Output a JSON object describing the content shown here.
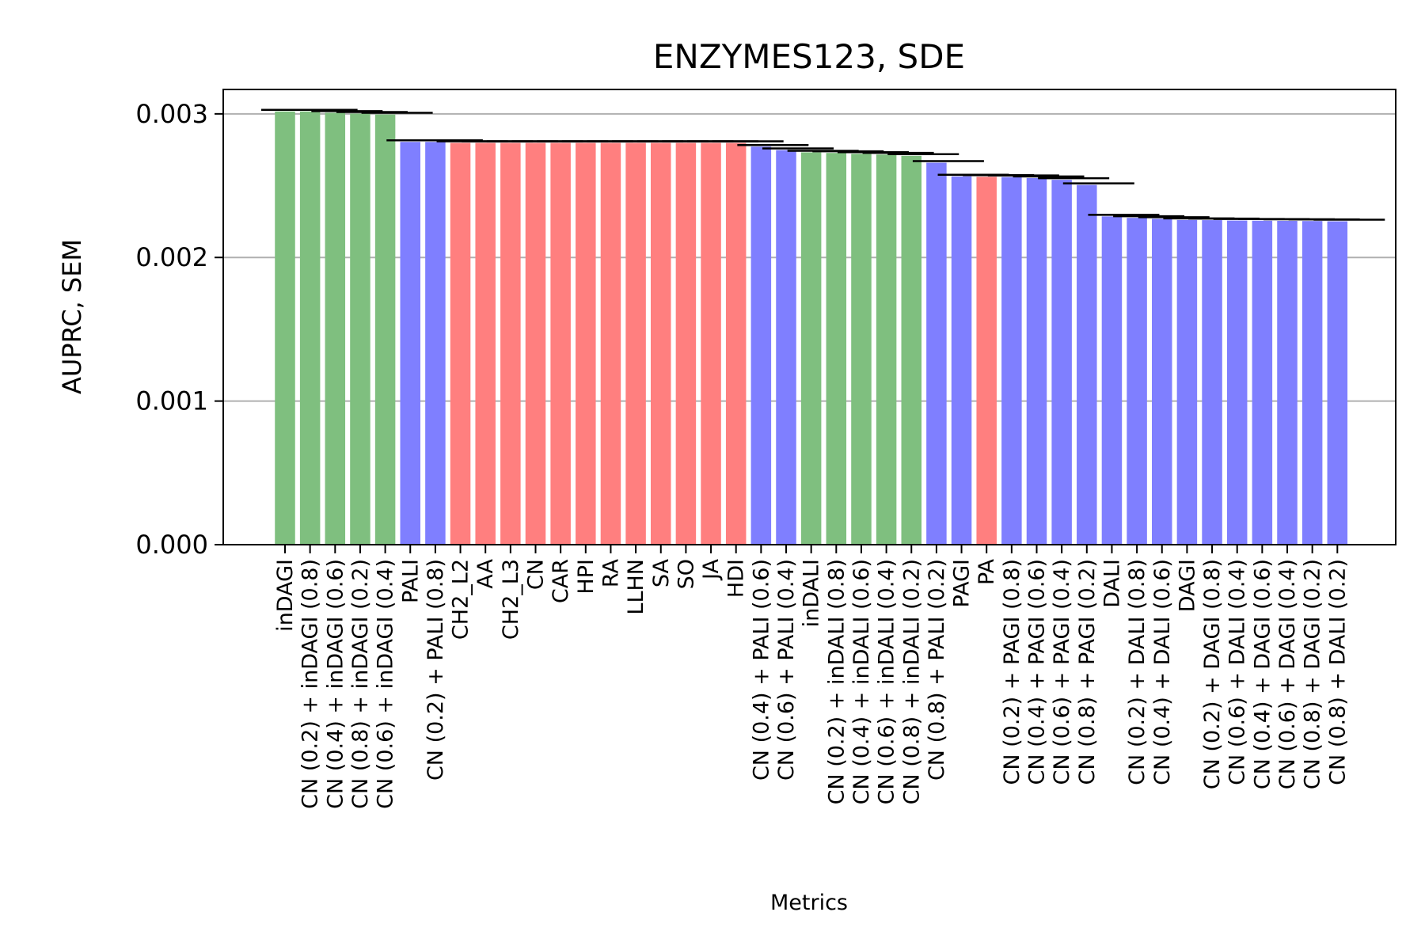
{
  "chart_data": {
    "type": "bar",
    "title": "ENZYMES123, SDE",
    "xlabel": "Metrics",
    "ylabel": "AUPRC, SEM",
    "ylim": [
      0,
      0.00317
    ],
    "yticks": [
      0.0,
      0.001,
      0.002,
      0.003
    ],
    "ytick_labels": [
      "0.000",
      "0.001",
      "0.002",
      "0.003"
    ],
    "grid": "y",
    "colors": {
      "green": "#7fbf7f",
      "blue": "#7f7fff",
      "red": "#ff7f7f",
      "grid": "#b0b0b0",
      "errorbar": "#000000"
    },
    "categories": [
      "inDAGI",
      "CN (0.2) + inDAGI (0.8)",
      "CN (0.4) + inDAGI (0.6)",
      "CN (0.8) + inDAGI (0.2)",
      "CN (0.6) + inDAGI (0.4)",
      "PALI",
      "CN (0.2) + PALI (0.8)",
      "CH2_L2",
      "AA",
      "CH2_L3",
      "CN",
      "CAR",
      "HPI",
      "RA",
      "LLHN",
      "SA",
      "SO",
      "JA",
      "HDI",
      "CN (0.4) + PALI (0.6)",
      "CN (0.6) + PALI (0.4)",
      "inDALI",
      "CN (0.2) + inDALI (0.8)",
      "CN (0.4) + inDALI (0.6)",
      "CN (0.6) + inDALI (0.4)",
      "CN (0.8) + inDALI (0.2)",
      "CN (0.8) + PALI (0.2)",
      "PAGI",
      "PA",
      "CN (0.2) + PAGI (0.8)",
      "CN (0.4) + PAGI (0.6)",
      "CN (0.6) + PAGI (0.4)",
      "CN (0.8) + PAGI (0.2)",
      "DALI",
      "CN (0.2) + DALI (0.8)",
      "CN (0.4) + DALI (0.6)",
      "DAGI",
      "CN (0.2) + DAGI (0.8)",
      "CN (0.6) + DALI (0.4)",
      "CN (0.4) + DAGI (0.6)",
      "CN (0.6) + DAGI (0.4)",
      "CN (0.8) + DAGI (0.2)",
      "CN (0.8) + DALI (0.2)"
    ],
    "values": [
      0.003017,
      0.003017,
      0.003008,
      0.003002,
      0.002996,
      0.002805,
      0.002805,
      0.002798,
      0.002798,
      0.002798,
      0.002798,
      0.002798,
      0.002798,
      0.002798,
      0.002798,
      0.002798,
      0.002798,
      0.002798,
      0.002798,
      0.002772,
      0.002748,
      0.002732,
      0.002728,
      0.002722,
      0.002717,
      0.002708,
      0.00266,
      0.002565,
      0.002562,
      0.00256,
      0.002553,
      0.002541,
      0.002505,
      0.002286,
      0.002276,
      0.002269,
      0.002261,
      0.00226,
      0.002257,
      0.002256,
      0.002255,
      0.002254,
      0.002252
    ],
    "bar_colors": [
      "green",
      "green",
      "green",
      "green",
      "green",
      "blue",
      "blue",
      "red",
      "red",
      "red",
      "red",
      "red",
      "red",
      "red",
      "red",
      "red",
      "red",
      "red",
      "red",
      "blue",
      "blue",
      "green",
      "green",
      "green",
      "green",
      "green",
      "blue",
      "blue",
      "red",
      "blue",
      "blue",
      "blue",
      "blue",
      "blue",
      "blue",
      "blue",
      "blue",
      "blue",
      "blue",
      "blue",
      "blue",
      "blue",
      "blue"
    ]
  }
}
